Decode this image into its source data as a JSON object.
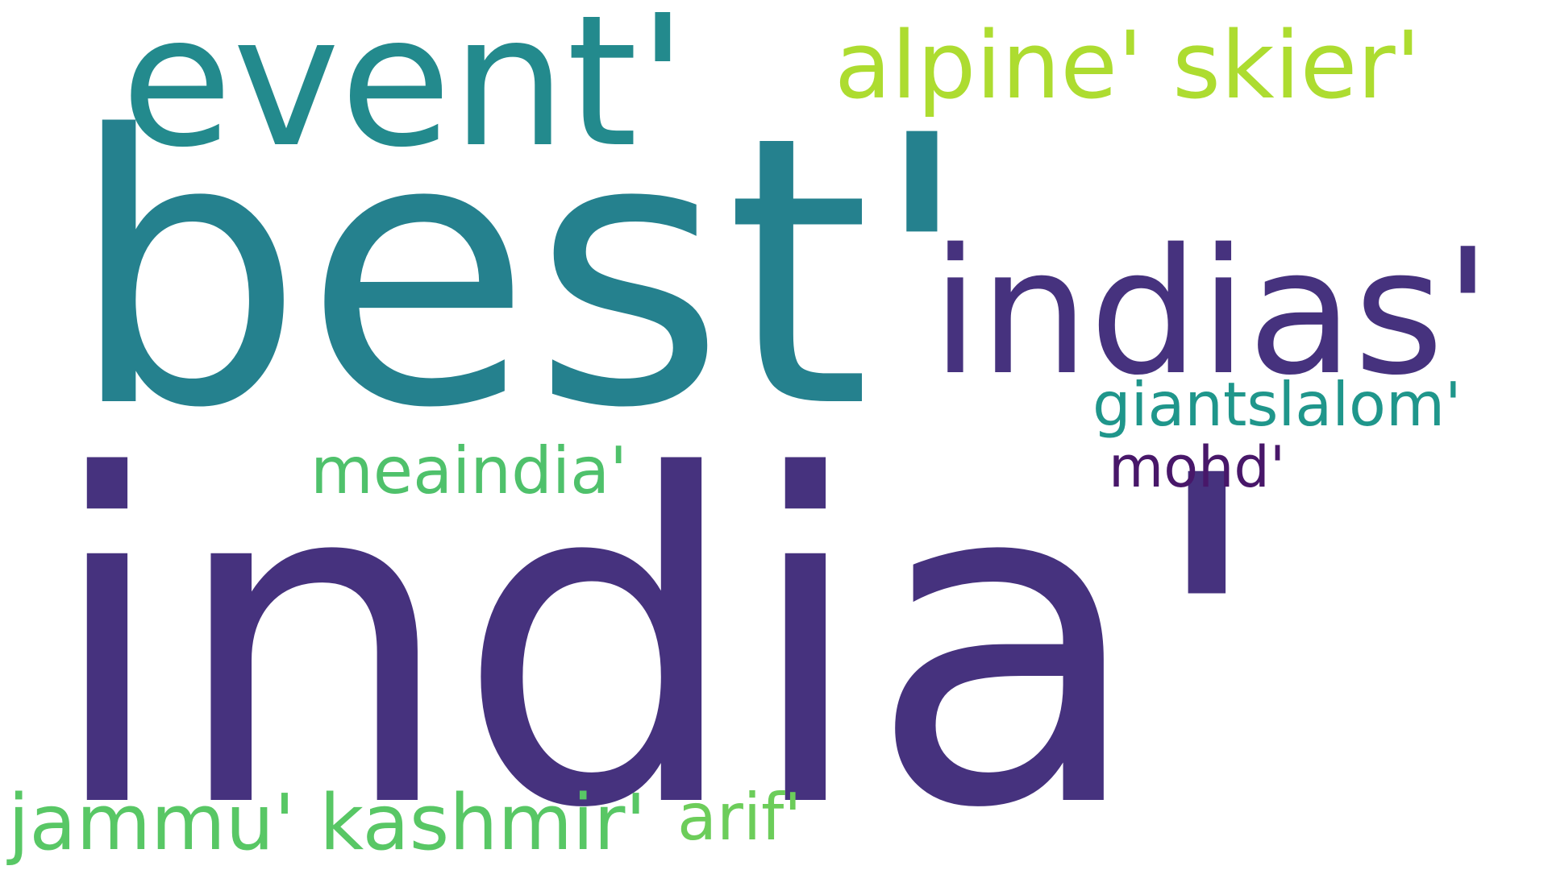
{
  "words": [
    {
      "text": "best'",
      "color": "#25818e"
    },
    {
      "text": "india'",
      "color": "#46327e"
    },
    {
      "text": "event'",
      "color": "#238a8d"
    },
    {
      "text": "alpine' skier'",
      "color": "#addc30"
    },
    {
      "text": "indias'",
      "color": "#46327e"
    },
    {
      "text": "giantslalom'",
      "color": "#1f968b"
    },
    {
      "text": "mohd'",
      "color": "#481769"
    },
    {
      "text": "meaindia'",
      "color": "#4fc16b"
    },
    {
      "text": "jammu' kashmir'",
      "color": "#58c765"
    },
    {
      "text": "arif'",
      "color": "#6ccd5a"
    }
  ]
}
